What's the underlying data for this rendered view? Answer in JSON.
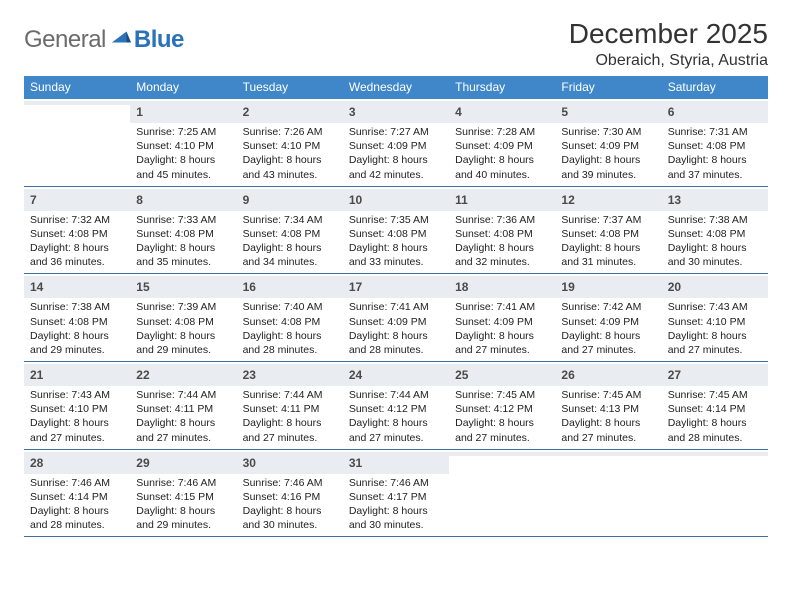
{
  "logo": {
    "text1": "General",
    "text2": "Blue"
  },
  "title": "December 2025",
  "location": "Oberaich, Styria, Austria",
  "colors": {
    "header_bg": "#3f87c9",
    "header_text": "#ffffff",
    "daynum_bg": "#e9edf1",
    "week_border": "#3f6fa0",
    "logo_gray": "#6b6b6b",
    "logo_blue": "#2a73b8",
    "body_text": "#222222",
    "page_bg": "#ffffff"
  },
  "fonts": {
    "title_size_pt": 21,
    "location_size_pt": 12,
    "header_size_pt": 9,
    "daynum_size_pt": 9,
    "body_size_pt": 8
  },
  "columns": [
    "Sunday",
    "Monday",
    "Tuesday",
    "Wednesday",
    "Thursday",
    "Friday",
    "Saturday"
  ],
  "weeks": [
    [
      {
        "n": "",
        "lines": [
          "",
          "",
          "",
          ""
        ]
      },
      {
        "n": "1",
        "lines": [
          "Sunrise: 7:25 AM",
          "Sunset: 4:10 PM",
          "Daylight: 8 hours",
          "and 45 minutes."
        ]
      },
      {
        "n": "2",
        "lines": [
          "Sunrise: 7:26 AM",
          "Sunset: 4:10 PM",
          "Daylight: 8 hours",
          "and 43 minutes."
        ]
      },
      {
        "n": "3",
        "lines": [
          "Sunrise: 7:27 AM",
          "Sunset: 4:09 PM",
          "Daylight: 8 hours",
          "and 42 minutes."
        ]
      },
      {
        "n": "4",
        "lines": [
          "Sunrise: 7:28 AM",
          "Sunset: 4:09 PM",
          "Daylight: 8 hours",
          "and 40 minutes."
        ]
      },
      {
        "n": "5",
        "lines": [
          "Sunrise: 7:30 AM",
          "Sunset: 4:09 PM",
          "Daylight: 8 hours",
          "and 39 minutes."
        ]
      },
      {
        "n": "6",
        "lines": [
          "Sunrise: 7:31 AM",
          "Sunset: 4:08 PM",
          "Daylight: 8 hours",
          "and 37 minutes."
        ]
      }
    ],
    [
      {
        "n": "7",
        "lines": [
          "Sunrise: 7:32 AM",
          "Sunset: 4:08 PM",
          "Daylight: 8 hours",
          "and 36 minutes."
        ]
      },
      {
        "n": "8",
        "lines": [
          "Sunrise: 7:33 AM",
          "Sunset: 4:08 PM",
          "Daylight: 8 hours",
          "and 35 minutes."
        ]
      },
      {
        "n": "9",
        "lines": [
          "Sunrise: 7:34 AM",
          "Sunset: 4:08 PM",
          "Daylight: 8 hours",
          "and 34 minutes."
        ]
      },
      {
        "n": "10",
        "lines": [
          "Sunrise: 7:35 AM",
          "Sunset: 4:08 PM",
          "Daylight: 8 hours",
          "and 33 minutes."
        ]
      },
      {
        "n": "11",
        "lines": [
          "Sunrise: 7:36 AM",
          "Sunset: 4:08 PM",
          "Daylight: 8 hours",
          "and 32 minutes."
        ]
      },
      {
        "n": "12",
        "lines": [
          "Sunrise: 7:37 AM",
          "Sunset: 4:08 PM",
          "Daylight: 8 hours",
          "and 31 minutes."
        ]
      },
      {
        "n": "13",
        "lines": [
          "Sunrise: 7:38 AM",
          "Sunset: 4:08 PM",
          "Daylight: 8 hours",
          "and 30 minutes."
        ]
      }
    ],
    [
      {
        "n": "14",
        "lines": [
          "Sunrise: 7:38 AM",
          "Sunset: 4:08 PM",
          "Daylight: 8 hours",
          "and 29 minutes."
        ]
      },
      {
        "n": "15",
        "lines": [
          "Sunrise: 7:39 AM",
          "Sunset: 4:08 PM",
          "Daylight: 8 hours",
          "and 29 minutes."
        ]
      },
      {
        "n": "16",
        "lines": [
          "Sunrise: 7:40 AM",
          "Sunset: 4:08 PM",
          "Daylight: 8 hours",
          "and 28 minutes."
        ]
      },
      {
        "n": "17",
        "lines": [
          "Sunrise: 7:41 AM",
          "Sunset: 4:09 PM",
          "Daylight: 8 hours",
          "and 28 minutes."
        ]
      },
      {
        "n": "18",
        "lines": [
          "Sunrise: 7:41 AM",
          "Sunset: 4:09 PM",
          "Daylight: 8 hours",
          "and 27 minutes."
        ]
      },
      {
        "n": "19",
        "lines": [
          "Sunrise: 7:42 AM",
          "Sunset: 4:09 PM",
          "Daylight: 8 hours",
          "and 27 minutes."
        ]
      },
      {
        "n": "20",
        "lines": [
          "Sunrise: 7:43 AM",
          "Sunset: 4:10 PM",
          "Daylight: 8 hours",
          "and 27 minutes."
        ]
      }
    ],
    [
      {
        "n": "21",
        "lines": [
          "Sunrise: 7:43 AM",
          "Sunset: 4:10 PM",
          "Daylight: 8 hours",
          "and 27 minutes."
        ]
      },
      {
        "n": "22",
        "lines": [
          "Sunrise: 7:44 AM",
          "Sunset: 4:11 PM",
          "Daylight: 8 hours",
          "and 27 minutes."
        ]
      },
      {
        "n": "23",
        "lines": [
          "Sunrise: 7:44 AM",
          "Sunset: 4:11 PM",
          "Daylight: 8 hours",
          "and 27 minutes."
        ]
      },
      {
        "n": "24",
        "lines": [
          "Sunrise: 7:44 AM",
          "Sunset: 4:12 PM",
          "Daylight: 8 hours",
          "and 27 minutes."
        ]
      },
      {
        "n": "25",
        "lines": [
          "Sunrise: 7:45 AM",
          "Sunset: 4:12 PM",
          "Daylight: 8 hours",
          "and 27 minutes."
        ]
      },
      {
        "n": "26",
        "lines": [
          "Sunrise: 7:45 AM",
          "Sunset: 4:13 PM",
          "Daylight: 8 hours",
          "and 27 minutes."
        ]
      },
      {
        "n": "27",
        "lines": [
          "Sunrise: 7:45 AM",
          "Sunset: 4:14 PM",
          "Daylight: 8 hours",
          "and 28 minutes."
        ]
      }
    ],
    [
      {
        "n": "28",
        "lines": [
          "Sunrise: 7:46 AM",
          "Sunset: 4:14 PM",
          "Daylight: 8 hours",
          "and 28 minutes."
        ]
      },
      {
        "n": "29",
        "lines": [
          "Sunrise: 7:46 AM",
          "Sunset: 4:15 PM",
          "Daylight: 8 hours",
          "and 29 minutes."
        ]
      },
      {
        "n": "30",
        "lines": [
          "Sunrise: 7:46 AM",
          "Sunset: 4:16 PM",
          "Daylight: 8 hours",
          "and 30 minutes."
        ]
      },
      {
        "n": "31",
        "lines": [
          "Sunrise: 7:46 AM",
          "Sunset: 4:17 PM",
          "Daylight: 8 hours",
          "and 30 minutes."
        ]
      },
      {
        "n": "",
        "lines": [
          "",
          "",
          "",
          ""
        ]
      },
      {
        "n": "",
        "lines": [
          "",
          "",
          "",
          ""
        ]
      },
      {
        "n": "",
        "lines": [
          "",
          "",
          "",
          ""
        ]
      }
    ]
  ]
}
